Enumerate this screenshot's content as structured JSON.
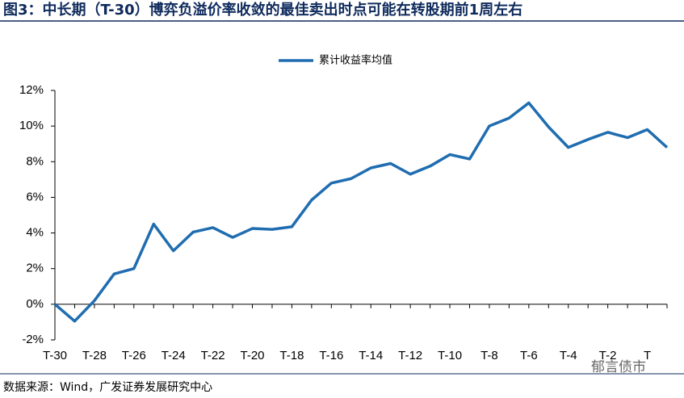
{
  "chart_data": {
    "type": "line",
    "title": "图3：中长期（T-30）博弈负溢价率收敛的最佳卖出时点可能在转股期前1周左右",
    "source": "数据来源：Wind，广发证券发展研究中心",
    "watermark": "郁言债市",
    "categories": [
      "T-30",
      null,
      "T-28",
      null,
      "T-26",
      null,
      "T-24",
      null,
      "T-22",
      null,
      "T-20",
      null,
      "T-18",
      null,
      "T-16",
      null,
      "T-14",
      null,
      "T-12",
      null,
      "T-10",
      null,
      "T-8",
      null,
      "T-6",
      null,
      "T-4",
      null,
      "T-2",
      null,
      "T",
      null
    ],
    "series": [
      {
        "name": "累计收益率均值",
        "color": "#1f6db0",
        "values": [
          0,
          -0.95,
          0.2,
          1.7,
          2.0,
          4.5,
          3.0,
          4.05,
          4.3,
          3.75,
          4.25,
          4.2,
          4.35,
          5.85,
          6.8,
          7.05,
          7.65,
          7.9,
          7.3,
          7.75,
          8.4,
          8.15,
          10.0,
          10.45,
          11.3,
          9.95,
          8.8,
          9.25,
          9.65,
          9.35,
          9.8,
          8.8
        ]
      }
    ],
    "ylim": [
      -2,
      12
    ],
    "yticks": [
      {
        "value": -2,
        "label": "-2%"
      },
      {
        "value": 0,
        "label": "0%"
      },
      {
        "value": 2,
        "label": "2%"
      },
      {
        "value": 4,
        "label": "4%"
      },
      {
        "value": 6,
        "label": "6%"
      },
      {
        "value": 8,
        "label": "8%"
      },
      {
        "value": 10,
        "label": "10%"
      },
      {
        "value": 12,
        "label": "12%"
      }
    ],
    "grid": false,
    "legend": "top"
  }
}
